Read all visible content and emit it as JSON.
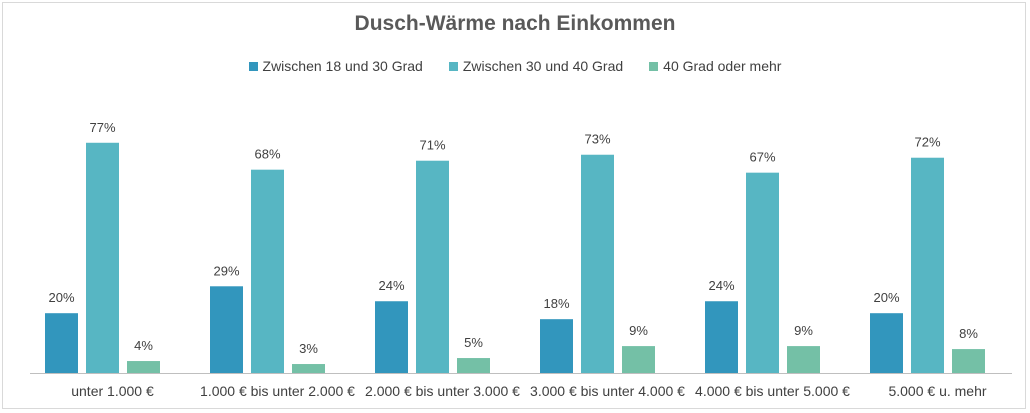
{
  "chart_data": {
    "type": "bar",
    "title": "Dusch-Wärme nach Einkommen",
    "categories": [
      "unter 1.000 €",
      "1.000 € bis unter 2.000 €",
      "2.000 € bis unter 3.000 €",
      "3.000 € bis unter 4.000 €",
      "4.000 € bis unter 5.000 €",
      "5.000 € u. mehr"
    ],
    "series": [
      {
        "name": "Zwischen 18 und 30 Grad",
        "color": "#3296bd",
        "values": [
          20,
          29,
          24,
          18,
          24,
          20
        ],
        "labels": [
          "20%",
          "29%",
          "24%",
          "18%",
          "24%",
          "20%"
        ]
      },
      {
        "name": "Zwischen 30 und 40 Grad",
        "color": "#57b6c3",
        "values": [
          77,
          68,
          71,
          73,
          67,
          72
        ],
        "labels": [
          "77%",
          "68%",
          "71%",
          "73%",
          "67%",
          "72%"
        ]
      },
      {
        "name": "40 Grad oder mehr",
        "color": "#74c0a6",
        "values": [
          4,
          3,
          5,
          9,
          9,
          8
        ],
        "labels": [
          "4%",
          "3%",
          "5%",
          "9%",
          "9%",
          "8%"
        ]
      }
    ],
    "ylim": [
      0,
      80
    ],
    "legend_position": "top-center",
    "grid": false,
    "axis_color": "#bfbfbf"
  }
}
